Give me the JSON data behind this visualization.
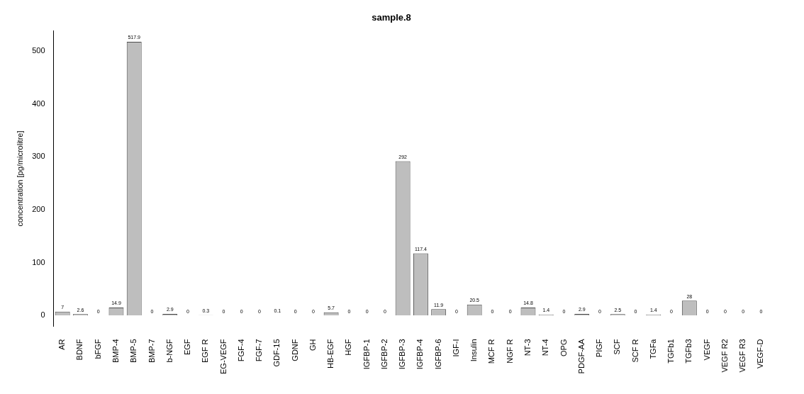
{
  "chart_data": {
    "type": "bar",
    "title": "sample.8",
    "ylabel": "concentration [pg/microlitre]",
    "categories": [
      "AR",
      "BDNF",
      "bFGF",
      "BMP-4",
      "BMP-5",
      "BMP-7",
      "b-NGF",
      "EGF",
      "EGF R",
      "EG-VEGF",
      "FGF-4",
      "FGF-7",
      "GDF-15",
      "GDNF",
      "GH",
      "HB-EGF",
      "HGF",
      "IGFBP-1",
      "IGFBP-2",
      "IGFBP-3",
      "IGFBP-4",
      "IGFBP-6",
      "IGF-I",
      "Insulin",
      "MCF R",
      "NGF R",
      "NT-3",
      "NT-4",
      "OPG",
      "PDGF-AA",
      "PIGF",
      "SCF",
      "SCF R",
      "TGFa",
      "TGFb1",
      "TGFb3",
      "VEGF",
      "VEGF R2",
      "VEGF R3",
      "VEGF-D"
    ],
    "values": [
      7,
      2.6,
      0,
      14.9,
      517.9,
      0,
      2.9,
      0,
      0.3,
      0,
      0,
      0,
      0.1,
      0,
      0,
      5.7,
      0,
      0,
      0,
      292,
      117.4,
      11.9,
      0,
      20.5,
      0,
      0,
      14.8,
      1.4,
      0,
      2.9,
      0,
      2.5,
      0,
      1.4,
      0,
      28,
      0,
      0,
      0,
      0
    ],
    "color": "#bebebe",
    "ylim": [
      -20.7,
      538.6
    ],
    "yticks": [
      0,
      100,
      200,
      300,
      400,
      500
    ],
    "grid": false,
    "data_labels": true
  }
}
